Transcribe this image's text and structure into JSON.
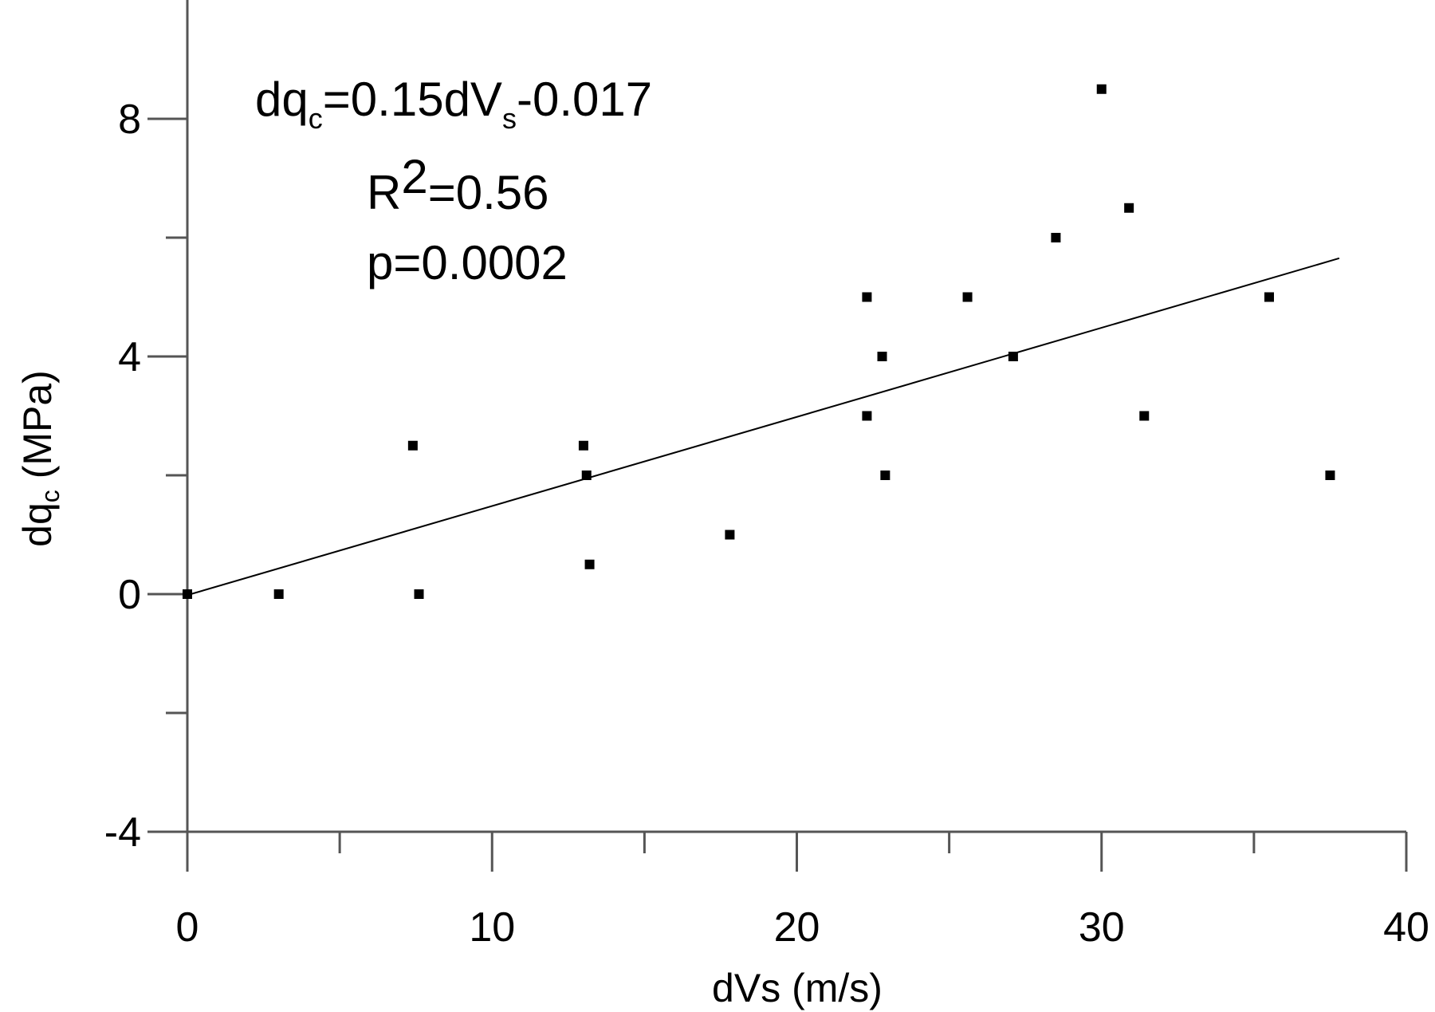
{
  "chart_data": {
    "type": "scatter",
    "xlabel": "dVs (m/s)",
    "ylabel_main": "dq",
    "ylabel_sub": "c",
    "ylabel_unit": " (MPa)",
    "xlim": [
      0,
      40
    ],
    "ylim": [
      -4,
      10
    ],
    "x_ticks": [
      0,
      10,
      20,
      30,
      40
    ],
    "x_minor_ticks": [
      5,
      15,
      25,
      35
    ],
    "y_ticks": [
      -4,
      0,
      4,
      8
    ],
    "y_minor_ticks": [
      -2,
      2,
      6
    ],
    "grid": false,
    "points": [
      {
        "x": 0,
        "y": 0
      },
      {
        "x": 3,
        "y": 0
      },
      {
        "x": 7.4,
        "y": 2.5
      },
      {
        "x": 7.6,
        "y": 0
      },
      {
        "x": 13,
        "y": 2.5
      },
      {
        "x": 13.1,
        "y": 2
      },
      {
        "x": 13.2,
        "y": 0.5
      },
      {
        "x": 17.8,
        "y": 1
      },
      {
        "x": 22.3,
        "y": 5
      },
      {
        "x": 22.3,
        "y": 3
      },
      {
        "x": 22.8,
        "y": 4
      },
      {
        "x": 22.9,
        "y": 2
      },
      {
        "x": 25.6,
        "y": 5
      },
      {
        "x": 27.1,
        "y": 4
      },
      {
        "x": 28.5,
        "y": 6
      },
      {
        "x": 30,
        "y": 8.5
      },
      {
        "x": 30.9,
        "y": 6.5
      },
      {
        "x": 31.4,
        "y": 3
      },
      {
        "x": 35.5,
        "y": 5
      },
      {
        "x": 37.5,
        "y": 2
      }
    ],
    "fit_line": {
      "slope": 0.15,
      "intercept": -0.017,
      "x_range": [
        0,
        37.8
      ]
    },
    "annotations": {
      "eq_lhs": "dq",
      "eq_lhs_sub": "c",
      "eq_mid": "=0.15dV",
      "eq_mid_sub": "s",
      "eq_rhs": "-0.017",
      "r2_prefix": "R",
      "r2_sup": "2",
      "r2_value": "=0.56",
      "p_value": "p=0.0002"
    }
  }
}
